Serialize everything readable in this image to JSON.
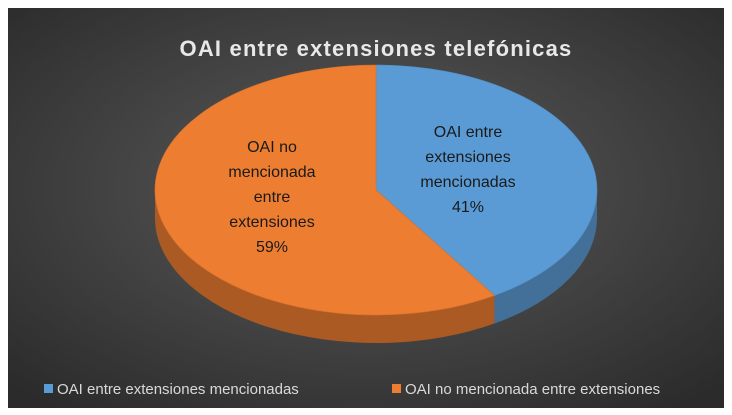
{
  "chart_data": {
    "type": "pie3d",
    "title": "OAI entre extensiones telefónicas",
    "categories": [
      "OAI entre extensiones mencionadas",
      "OAI no mencionada entre extensiones"
    ],
    "values": [
      41,
      59
    ],
    "value_labels": [
      "41%",
      "59%"
    ],
    "colors": [
      "#5b9bd5",
      "#ed7d31"
    ],
    "legend": "bottom"
  }
}
